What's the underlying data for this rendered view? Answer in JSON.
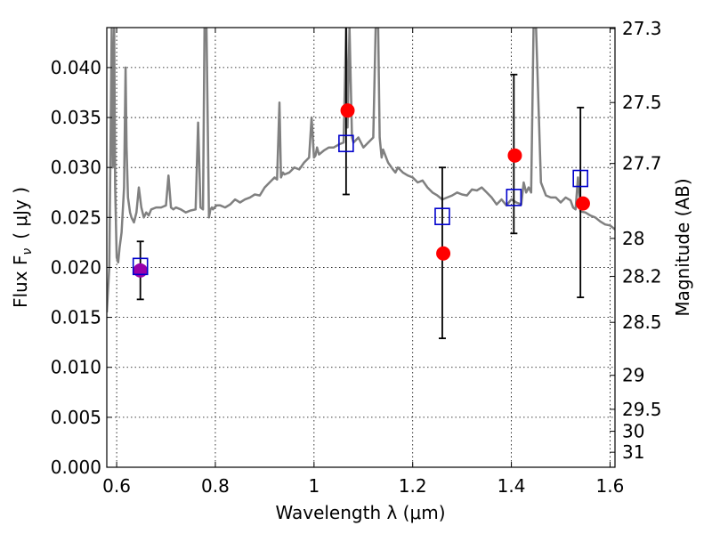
{
  "chart_data": {
    "type": "scatter",
    "xlabel": "Wavelength  λ (μm)",
    "ylabel": "Flux  F",
    "ylabel_sub": "ν",
    "ylabel_unit": "( μJy )",
    "y2label": "Magnitude (AB)",
    "xlim": [
      0.58,
      1.61
    ],
    "ylim": [
      0.0,
      0.044
    ],
    "x_ticks": [
      0.6,
      0.8,
      1.0,
      1.2,
      1.4,
      1.6
    ],
    "x_tick_labels": [
      "0.6",
      "0.8",
      "1",
      "1.2",
      "1.4",
      "1.6"
    ],
    "y_ticks": [
      0.0,
      0.005,
      0.01,
      0.015,
      0.02,
      0.025,
      0.03,
      0.035,
      0.04
    ],
    "y_tick_labels": [
      "0.000",
      "0.005",
      "0.010",
      "0.015",
      "0.020",
      "0.025",
      "0.030",
      "0.035",
      "0.040"
    ],
    "y2_ticks": [
      {
        "label": "27.3",
        "flux": 0.0439
      },
      {
        "label": "27.5",
        "flux": 0.0365
      },
      {
        "label": "27.7",
        "flux": 0.0304
      },
      {
        "label": "28",
        "flux": 0.0229
      },
      {
        "label": "28.2",
        "flux": 0.0191
      },
      {
        "label": "28.5",
        "flux": 0.0145
      },
      {
        "label": "29",
        "flux": 0.0092
      },
      {
        "label": "29.5",
        "flux": 0.0058
      },
      {
        "label": "30",
        "flux": 0.0036
      },
      {
        "label": "31",
        "flux": 0.0015
      }
    ],
    "grid": true,
    "colors": {
      "model": "#808080",
      "model_points": "#ff0000",
      "observed": "#0000cc",
      "error_bars": "#000000",
      "overlap": "#9900aa"
    },
    "series": [
      {
        "style": "model-spectrum-line",
        "x": [
          0.58,
          0.585,
          0.59,
          0.592,
          0.595,
          0.597,
          0.6,
          0.603,
          0.606,
          0.61,
          0.615,
          0.618,
          0.62,
          0.623,
          0.627,
          0.63,
          0.635,
          0.64,
          0.645,
          0.65,
          0.655,
          0.66,
          0.665,
          0.67,
          0.68,
          0.69,
          0.7,
          0.705,
          0.71,
          0.715,
          0.72,
          0.73,
          0.74,
          0.75,
          0.76,
          0.765,
          0.77,
          0.775,
          0.778,
          0.782,
          0.787,
          0.79,
          0.793,
          0.795,
          0.798,
          0.803,
          0.81,
          0.82,
          0.83,
          0.84,
          0.85,
          0.86,
          0.87,
          0.88,
          0.89,
          0.9,
          0.91,
          0.92,
          0.925,
          0.93,
          0.933,
          0.937,
          0.94,
          0.95,
          0.96,
          0.97,
          0.98,
          0.99,
          0.995,
          1.0,
          1.003,
          1.006,
          1.01,
          1.02,
          1.03,
          1.04,
          1.05,
          1.06,
          1.065,
          1.068,
          1.072,
          1.077,
          1.08,
          1.09,
          1.1,
          1.11,
          1.12,
          1.125,
          1.13,
          1.133,
          1.137,
          1.14,
          1.15,
          1.16,
          1.165,
          1.17,
          1.18,
          1.19,
          1.2,
          1.21,
          1.22,
          1.23,
          1.24,
          1.25,
          1.26,
          1.27,
          1.28,
          1.29,
          1.3,
          1.31,
          1.32,
          1.33,
          1.34,
          1.35,
          1.36,
          1.37,
          1.38,
          1.39,
          1.4,
          1.41,
          1.42,
          1.425,
          1.43,
          1.435,
          1.44,
          1.445,
          1.45,
          1.46,
          1.47,
          1.48,
          1.49,
          1.5,
          1.51,
          1.52,
          1.525,
          1.53,
          1.535,
          1.54,
          1.55,
          1.56,
          1.57,
          1.58,
          1.59,
          1.6,
          1.61
        ],
        "y": [
          0.0155,
          0.02,
          0.044,
          0.03,
          0.044,
          0.028,
          0.021,
          0.0205,
          0.022,
          0.0235,
          0.028,
          0.04,
          0.032,
          0.027,
          0.0255,
          0.025,
          0.0245,
          0.0255,
          0.028,
          0.026,
          0.025,
          0.0255,
          0.0252,
          0.0258,
          0.026,
          0.026,
          0.0262,
          0.0292,
          0.026,
          0.0258,
          0.026,
          0.0258,
          0.0255,
          0.0257,
          0.0258,
          0.0345,
          0.026,
          0.0258,
          0.044,
          0.044,
          0.025,
          0.0258,
          0.026,
          0.0258,
          0.026,
          0.0262,
          0.0262,
          0.026,
          0.0263,
          0.0268,
          0.0265,
          0.0268,
          0.027,
          0.0273,
          0.0272,
          0.028,
          0.0285,
          0.029,
          0.0288,
          0.0365,
          0.029,
          0.0295,
          0.0293,
          0.0295,
          0.03,
          0.0298,
          0.0305,
          0.031,
          0.035,
          0.031,
          0.0312,
          0.032,
          0.0313,
          0.0317,
          0.032,
          0.032,
          0.0323,
          0.0325,
          0.044,
          0.034,
          0.044,
          0.033,
          0.0325,
          0.033,
          0.032,
          0.0325,
          0.033,
          0.044,
          0.044,
          0.033,
          0.031,
          0.0318,
          0.0305,
          0.0298,
          0.0295,
          0.03,
          0.0295,
          0.0292,
          0.029,
          0.0285,
          0.0287,
          0.028,
          0.0275,
          0.0272,
          0.0268,
          0.027,
          0.0272,
          0.0275,
          0.0273,
          0.0272,
          0.0278,
          0.0277,
          0.028,
          0.0275,
          0.027,
          0.0263,
          0.0268,
          0.0262,
          0.0268,
          0.0265,
          0.0263,
          0.0285,
          0.0275,
          0.028,
          0.0275,
          0.044,
          0.044,
          0.0285,
          0.0272,
          0.027,
          0.027,
          0.0265,
          0.027,
          0.0267,
          0.026,
          0.0258,
          0.029,
          0.0256,
          0.0255,
          0.0252,
          0.025,
          0.0246,
          0.0243,
          0.0242,
          0.0238
        ]
      },
      {
        "name": "",
        "style": "red-circles",
        "x": [
          0.648,
          1.068,
          1.262,
          1.407,
          1.545
        ],
        "y": [
          0.0197,
          0.0357,
          0.0214,
          0.0312,
          0.0264
        ]
      },
      {
        "name": "",
        "style": "blue-open-squares-with-errorbars",
        "x": [
          0.648,
          1.065,
          1.26,
          1.405,
          1.54
        ],
        "y": [
          0.0201,
          0.0324,
          0.0251,
          0.027,
          0.0289
        ],
        "y_err_low": [
          0.0168,
          0.0273,
          0.0129,
          0.0234,
          0.017
        ],
        "y_err_high": [
          0.0226,
          0.044,
          0.03,
          0.0393,
          0.036
        ]
      }
    ]
  }
}
